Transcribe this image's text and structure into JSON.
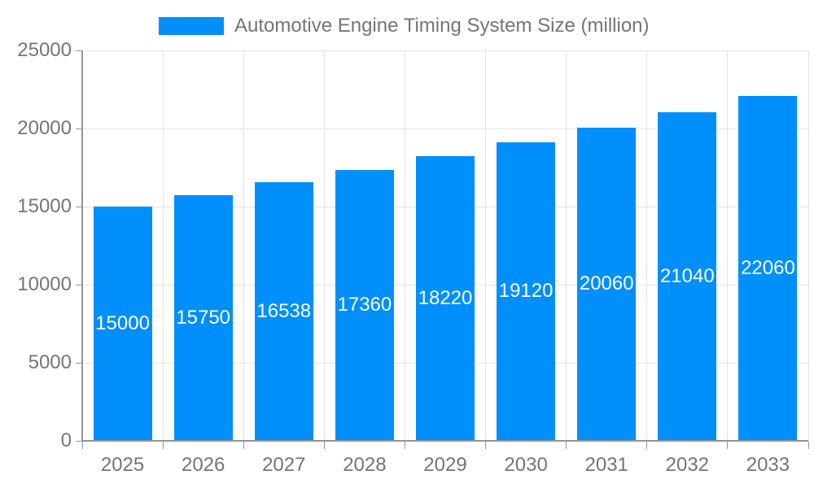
{
  "chart_data": {
    "type": "bar",
    "title": "Automotive Engine Timing System Size (million)",
    "legend": {
      "label": "Automotive Engine Timing System Size (million)",
      "position": "top"
    },
    "categories": [
      "2025",
      "2026",
      "2027",
      "2028",
      "2029",
      "2030",
      "2031",
      "2032",
      "2033"
    ],
    "series": [
      {
        "name": "Automotive Engine Timing System Size (million)",
        "values": [
          15000,
          15750,
          16538,
          17360,
          18220,
          19120,
          20060,
          21040,
          22060
        ]
      }
    ],
    "xlabel": "",
    "ylabel": "",
    "ylim": [
      0,
      25000
    ],
    "yticks": [
      0,
      5000,
      10000,
      15000,
      20000,
      25000
    ],
    "grid": true,
    "data_labels": "inside-center-white",
    "colors": {
      "bar": "#008FFB",
      "axis_line": "#949494",
      "gridline": "#e3e3e3",
      "axis_text": "#757575",
      "bar_label_text": "#ffffff",
      "background": "#ffffff"
    }
  }
}
